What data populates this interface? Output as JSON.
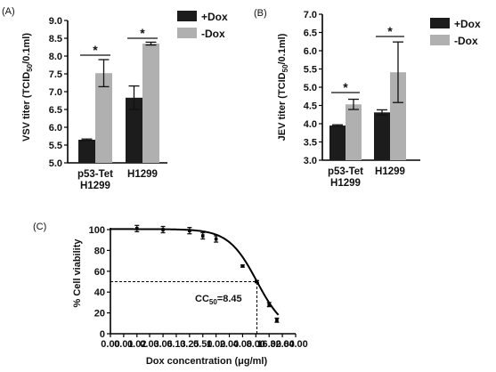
{
  "colors": {
    "plus_dox": "#1c1c1c",
    "minus_dox": "#b0b0b0",
    "axis": "#000000"
  },
  "chart_data": [
    {
      "panel": "(A)",
      "type": "bar",
      "categories": [
        "p53-Tet\nH1299",
        "H1299"
      ],
      "series": [
        {
          "name": "+Dox",
          "values": [
            5.65,
            6.83
          ],
          "errors": [
            0.02,
            0.33
          ]
        },
        {
          "name": "-Dox",
          "values": [
            7.52,
            8.35
          ],
          "errors": [
            0.38,
            0.04
          ]
        }
      ],
      "ylabel": "VSV titer (TCID50/0.1ml)",
      "ylim": [
        5.0,
        9.0
      ],
      "yticks": [
        "5.0",
        "5.5",
        "6.0",
        "6.5",
        "7.0",
        "7.5",
        "8.0",
        "8.5",
        "9.0"
      ],
      "significance": [
        "*",
        "*"
      ],
      "legend": "top-right"
    },
    {
      "panel": "(B)",
      "type": "bar",
      "categories": [
        "p53-Tet\nH1299",
        "H1299"
      ],
      "series": [
        {
          "name": "+Dox",
          "values": [
            3.95,
            4.31
          ],
          "errors": [
            0.02,
            0.07
          ]
        },
        {
          "name": "-Dox",
          "values": [
            4.53,
            5.41
          ],
          "errors": [
            0.14,
            0.83
          ]
        }
      ],
      "ylabel": "JEV titer (TCID50/0.1ml)",
      "ylim": [
        3.0,
        7.0
      ],
      "yticks": [
        "3.0",
        "3.5",
        "4.0",
        "4.5",
        "5.0",
        "5.5",
        "6.0",
        "6.5",
        "7.0"
      ],
      "significance": [
        "*",
        "*"
      ],
      "legend": "top-right"
    },
    {
      "panel": "(C)",
      "type": "line",
      "xlabel": "Dox concentration (μg/ml)",
      "ylabel": "% Cell viability",
      "xscale": "log2",
      "xticks": [
        "0.00",
        "0.02",
        "0.06",
        "0.25",
        "1.00",
        "4.00",
        "16.00",
        "64.00"
      ],
      "xtick_values": [
        0.004,
        0.016,
        0.0625,
        0.25,
        1,
        4,
        16,
        64
      ],
      "xticks_minor": [
        "0.01",
        "0.03",
        "0.13",
        "0.50",
        "2.00",
        "8.00",
        "32.00"
      ],
      "xtick_minor_values": [
        0.008,
        0.031,
        0.125,
        0.5,
        2,
        8,
        32
      ],
      "ylim": [
        0,
        100
      ],
      "yticks": [
        "0",
        "20",
        "40",
        "60",
        "80",
        "100"
      ],
      "points": [
        {
          "x": 0.016,
          "y": 101,
          "err": 3
        },
        {
          "x": 0.0625,
          "y": 100,
          "err": 3
        },
        {
          "x": 0.25,
          "y": 99,
          "err": 3
        },
        {
          "x": 0.5,
          "y": 94,
          "err": 3
        },
        {
          "x": 1,
          "y": 91,
          "err": 3
        },
        {
          "x": 4,
          "y": 65,
          "err": 1
        },
        {
          "x": 8.45,
          "y": 50,
          "err": 1
        },
        {
          "x": 16,
          "y": 28,
          "err": 2
        },
        {
          "x": 24,
          "y": 13,
          "err": 2
        }
      ],
      "curve": {
        "top": 100.5,
        "bottom": 0,
        "ic50": 8.45,
        "hill": 1.35
      },
      "cc50": 8.45,
      "annotation": "CC50=8.45"
    }
  ]
}
